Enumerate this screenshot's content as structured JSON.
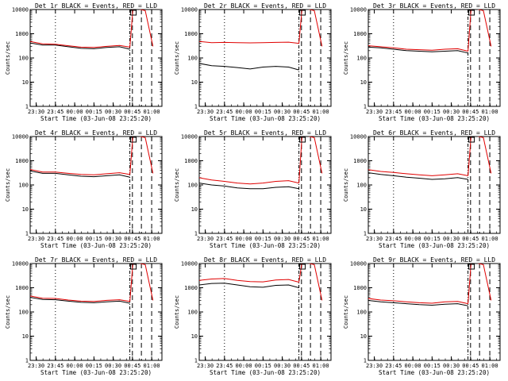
{
  "figure": {
    "xlabel": "Start Time (03-Jun-08 23:25:20)",
    "ylabel": "Counts/sec",
    "x_tick_labels": [
      "23:30",
      "23:45",
      "00:00",
      "00:15",
      "00:30",
      "00:45",
      "01:00"
    ],
    "y_tick_labels": [
      "1",
      "10",
      "100",
      "1000",
      "10000"
    ]
  },
  "colors": {
    "events": "#000000",
    "lld": "#e00000",
    "background": "#ffffff"
  },
  "chart_data": [
    {
      "type": "line",
      "title": "Det 1r BLACK = Events, RED = LLD",
      "ylog": true,
      "ylim": [
        1,
        10000
      ],
      "xlim": [
        "23:25:20",
        "01:08"
      ],
      "series": [
        {
          "name": "Events",
          "x": [
            "23:25",
            "23:35",
            "23:45",
            "23:55",
            "00:05",
            "00:15",
            "00:25",
            "00:35",
            "00:43"
          ],
          "values": [
            420,
            340,
            340,
            290,
            250,
            240,
            270,
            290,
            230
          ]
        },
        {
          "name": "LLD",
          "x": [
            "23:25",
            "23:35",
            "23:45",
            "23:55",
            "00:05",
            "00:15",
            "00:25",
            "00:35",
            "00:43"
          ],
          "values": [
            480,
            380,
            370,
            320,
            280,
            270,
            300,
            330,
            280
          ]
        }
      ],
      "vlines": [
        "23:45",
        "00:43",
        "00:45",
        "00:52",
        "01:00"
      ]
    },
    {
      "type": "line",
      "title": "Det 2r BLACK = Events, RED = LLD",
      "ylog": true,
      "ylim": [
        1,
        10000
      ],
      "xlim": [
        "23:25:20",
        "01:08"
      ],
      "series": [
        {
          "name": "Events",
          "x": [
            "23:25",
            "23:35",
            "23:45",
            "23:55",
            "00:05",
            "00:15",
            "00:25",
            "00:35",
            "00:43"
          ],
          "values": [
            60,
            48,
            45,
            40,
            35,
            42,
            45,
            42,
            32
          ]
        },
        {
          "name": "LLD",
          "x": [
            "23:25",
            "23:35",
            "23:45",
            "23:55",
            "00:05",
            "00:15",
            "00:25",
            "00:35",
            "00:43"
          ],
          "values": [
            480,
            430,
            440,
            430,
            420,
            430,
            440,
            450,
            400
          ]
        }
      ],
      "vlines": [
        "23:45",
        "00:43",
        "00:45",
        "00:52",
        "01:00"
      ]
    },
    {
      "type": "line",
      "title": "Det 3r BLACK = Events, RED = LLD",
      "ylog": true,
      "ylim": [
        1,
        10000
      ],
      "xlim": [
        "23:25:20",
        "01:08"
      ],
      "series": [
        {
          "name": "Events",
          "x": [
            "23:25",
            "23:35",
            "23:45",
            "23:55",
            "00:05",
            "00:15",
            "00:25",
            "00:35",
            "00:43"
          ],
          "values": [
            280,
            260,
            230,
            200,
            190,
            180,
            190,
            200,
            160
          ]
        },
        {
          "name": "LLD",
          "x": [
            "23:25",
            "23:35",
            "23:45",
            "23:55",
            "00:05",
            "00:15",
            "00:25",
            "00:35",
            "00:43"
          ],
          "values": [
            320,
            290,
            260,
            230,
            220,
            210,
            230,
            240,
            190
          ]
        }
      ],
      "vlines": [
        "23:45",
        "00:43",
        "00:45",
        "00:52",
        "01:00"
      ]
    },
    {
      "type": "line",
      "title": "Det 4r BLACK = Events, RED = LLD",
      "ylog": true,
      "ylim": [
        1,
        10000
      ],
      "xlim": [
        "23:25:20",
        "01:08"
      ],
      "series": [
        {
          "name": "Events",
          "x": [
            "23:25",
            "23:35",
            "23:45",
            "23:55",
            "00:05",
            "00:15",
            "00:25",
            "00:35",
            "00:43"
          ],
          "values": [
            380,
            300,
            300,
            260,
            230,
            220,
            240,
            260,
            210
          ]
        },
        {
          "name": "LLD",
          "x": [
            "23:25",
            "23:35",
            "23:45",
            "23:55",
            "00:05",
            "00:15",
            "00:25",
            "00:35",
            "00:43"
          ],
          "values": [
            440,
            340,
            340,
            300,
            270,
            260,
            290,
            320,
            270
          ]
        }
      ],
      "vlines": [
        "23:45",
        "00:43",
        "00:45",
        "00:52",
        "01:00"
      ]
    },
    {
      "type": "line",
      "title": "Det 5r BLACK = Events, RED = LLD",
      "ylog": true,
      "ylim": [
        1,
        10000
      ],
      "xlim": [
        "23:25:20",
        "01:08"
      ],
      "series": [
        {
          "name": "Events",
          "x": [
            "23:25",
            "23:35",
            "23:45",
            "23:55",
            "00:05",
            "00:15",
            "00:25",
            "00:35",
            "00:43"
          ],
          "values": [
            120,
            100,
            90,
            75,
            70,
            70,
            80,
            85,
            70
          ]
        },
        {
          "name": "LLD",
          "x": [
            "23:25",
            "23:35",
            "23:45",
            "23:55",
            "00:05",
            "00:15",
            "00:25",
            "00:35",
            "00:43"
          ],
          "values": [
            200,
            160,
            140,
            120,
            110,
            120,
            140,
            150,
            120
          ]
        }
      ],
      "vlines": [
        "23:45",
        "00:43",
        "00:45",
        "00:52",
        "01:00"
      ]
    },
    {
      "type": "line",
      "title": "Det 6r BLACK = Events, RED = LLD",
      "ylog": true,
      "ylim": [
        1,
        10000
      ],
      "xlim": [
        "23:25:20",
        "01:08"
      ],
      "series": [
        {
          "name": "Events",
          "x": [
            "23:25",
            "23:35",
            "23:45",
            "23:55",
            "00:05",
            "00:15",
            "00:25",
            "00:35",
            "00:43"
          ],
          "values": [
            320,
            270,
            240,
            210,
            190,
            170,
            180,
            200,
            170
          ]
        },
        {
          "name": "LLD",
          "x": [
            "23:25",
            "23:35",
            "23:45",
            "23:55",
            "00:05",
            "00:15",
            "00:25",
            "00:35",
            "00:43"
          ],
          "values": [
            430,
            360,
            330,
            290,
            260,
            240,
            260,
            290,
            240
          ]
        }
      ],
      "vlines": [
        "23:45",
        "00:43",
        "00:45",
        "00:52",
        "01:00"
      ]
    },
    {
      "type": "line",
      "title": "Det 7r BLACK = Events, RED = LLD",
      "ylog": true,
      "ylim": [
        1,
        10000
      ],
      "xlim": [
        "23:25:20",
        "01:08"
      ],
      "series": [
        {
          "name": "Events",
          "x": [
            "23:25",
            "23:35",
            "23:45",
            "23:55",
            "00:05",
            "00:15",
            "00:25",
            "00:35",
            "00:43"
          ],
          "values": [
            400,
            330,
            320,
            280,
            250,
            240,
            260,
            280,
            230
          ]
        },
        {
          "name": "LLD",
          "x": [
            "23:25",
            "23:35",
            "23:45",
            "23:55",
            "00:05",
            "00:15",
            "00:25",
            "00:35",
            "00:43"
          ],
          "values": [
            460,
            370,
            360,
            310,
            280,
            270,
            300,
            320,
            270
          ]
        }
      ],
      "vlines": [
        "23:45",
        "00:43",
        "00:45",
        "00:52",
        "01:00"
      ]
    },
    {
      "type": "line",
      "title": "Det 8r BLACK = Events, RED = LLD",
      "ylog": true,
      "ylim": [
        1,
        10000
      ],
      "xlim": [
        "23:25:20",
        "01:08"
      ],
      "series": [
        {
          "name": "Events",
          "x": [
            "23:25",
            "23:35",
            "23:45",
            "23:55",
            "00:05",
            "00:15",
            "00:25",
            "00:35",
            "00:43"
          ],
          "values": [
            1300,
            1500,
            1550,
            1300,
            1100,
            1050,
            1250,
            1300,
            1000
          ]
        },
        {
          "name": "LLD",
          "x": [
            "23:25",
            "23:35",
            "23:45",
            "23:55",
            "00:05",
            "00:15",
            "00:25",
            "00:35",
            "00:43"
          ],
          "values": [
            2000,
            2300,
            2400,
            2000,
            1800,
            1750,
            2100,
            2200,
            1700
          ]
        }
      ],
      "vlines": [
        "23:45",
        "00:43",
        "00:45",
        "00:52",
        "01:00"
      ]
    },
    {
      "type": "line",
      "title": "Det 9r BLACK = Events, RED = LLD",
      "ylog": true,
      "ylim": [
        1,
        10000
      ],
      "xlim": [
        "23:25:20",
        "01:08"
      ],
      "series": [
        {
          "name": "Events",
          "x": [
            "23:25",
            "23:35",
            "23:45",
            "23:55",
            "00:05",
            "00:15",
            "00:25",
            "00:35",
            "00:43"
          ],
          "values": [
            300,
            260,
            240,
            220,
            200,
            190,
            210,
            220,
            180
          ]
        },
        {
          "name": "LLD",
          "x": [
            "23:25",
            "23:35",
            "23:45",
            "23:55",
            "00:05",
            "00:15",
            "00:25",
            "00:35",
            "00:43"
          ],
          "values": [
            360,
            310,
            290,
            260,
            240,
            230,
            260,
            270,
            220
          ]
        }
      ],
      "vlines": [
        "23:45",
        "00:43",
        "00:45",
        "00:52",
        "01:00"
      ]
    }
  ]
}
